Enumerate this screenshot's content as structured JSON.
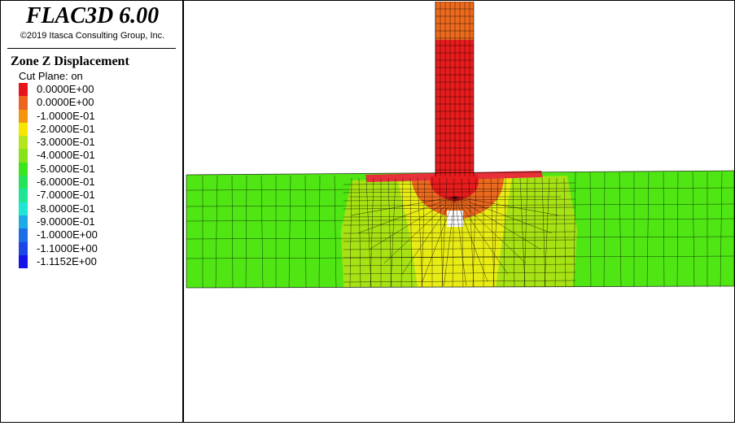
{
  "header": {
    "app_title": "FLAC3D 6.00",
    "copyright": "©2019 Itasca Consulting Group, Inc."
  },
  "legend": {
    "plot_title": "Zone Z Displacement",
    "cut_plane": "Cut Plane: on",
    "entries": [
      {
        "label": "0.0000E+00",
        "color": "#e8141c"
      },
      {
        "label": "0.0000E+00",
        "color": "#ec641e"
      },
      {
        "label": "-1.0000E-01",
        "color": "#f3960e"
      },
      {
        "label": "-2.0000E-01",
        "color": "#f6e600"
      },
      {
        "label": "-3.0000E-01",
        "color": "#b4e61e"
      },
      {
        "label": "-4.0000E-01",
        "color": "#88e21a"
      },
      {
        "label": "-5.0000E-01",
        "color": "#3ce61e"
      },
      {
        "label": "-6.0000E-01",
        "color": "#26e35a"
      },
      {
        "label": "-7.0000E-01",
        "color": "#1ee696"
      },
      {
        "label": "-8.0000E-01",
        "color": "#1ee6d2"
      },
      {
        "label": "-9.0000E-01",
        "color": "#1eaae6"
      },
      {
        "label": "-1.0000E+00",
        "color": "#1e6ee6"
      },
      {
        "label": "-1.1000E+00",
        "color": "#1e46e6"
      },
      {
        "label": "-1.1152E+00",
        "color": "#1414e8"
      }
    ]
  },
  "model_colors": {
    "soil_far": "#4fe614",
    "soil_mid": "#a6e214",
    "soil_near": "#e9ec14",
    "pile_top": "#ec6a1e",
    "pile_body": "#e81c1c",
    "surface_band": "#e8303a",
    "cavity": "#ffffff",
    "mesh": "#000000"
  }
}
